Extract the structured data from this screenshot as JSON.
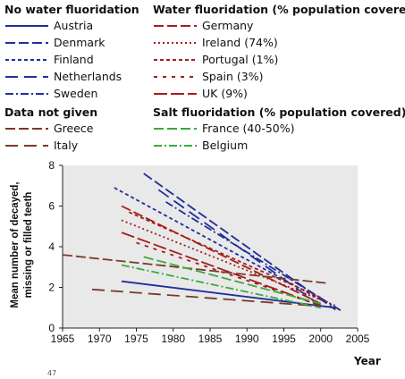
{
  "legend": {
    "no_water_header": "No water fluoridation",
    "water_header": "Water fluoridation (% population covered)",
    "data_not_given_header": "Data not given",
    "salt_header": "Salt fluoridation (% population covered)"
  },
  "chart_data": {
    "type": "line",
    "xlabel": "Year",
    "ylabel_line1": "Mean number of decayed,",
    "ylabel_line2": "missing or filled teeth",
    "xlim": [
      1965,
      2005
    ],
    "ylim": [
      0,
      8
    ],
    "x_ticks": [
      1965,
      1970,
      1975,
      1980,
      1985,
      1990,
      1995,
      2000,
      2005
    ],
    "x_tick_labels": [
      "1965",
      "1970",
      "1975",
      "1980",
      "1985",
      "1990",
      "1995",
      "2000",
      "2005"
    ],
    "y_ticks": [
      0,
      2,
      4,
      6,
      8
    ],
    "y_tick_labels": [
      "0",
      "2",
      "4",
      "6",
      "8"
    ],
    "grid": false,
    "footnote": "47",
    "series": [
      {
        "name": "Austria",
        "group": "no_water",
        "color": "#1f2f9c",
        "dash": "solid",
        "x": [
          1973,
          2002
        ],
        "y": [
          2.3,
          1.0
        ]
      },
      {
        "name": "Denmark",
        "group": "no_water",
        "color": "#1f2f9c",
        "dash": "long",
        "x": [
          1976,
          2002
        ],
        "y": [
          7.6,
          0.9
        ]
      },
      {
        "name": "Finland",
        "group": "no_water",
        "color": "#1f2f9c",
        "dash": "short",
        "x": [
          1972,
          2001
        ],
        "y": [
          6.9,
          1.2
        ]
      },
      {
        "name": "Netherlands",
        "group": "no_water",
        "color": "#1f2f9c",
        "dash": "longgap",
        "x": [
          1978,
          2000
        ],
        "y": [
          6.8,
          1.1
        ]
      },
      {
        "name": "Sweden",
        "group": "no_water",
        "color": "#1f2f9c",
        "dash": "dashdot",
        "x": [
          1979,
          2003
        ],
        "y": [
          6.2,
          0.8
        ]
      },
      {
        "name": "Germany",
        "group": "water",
        "color": "#a51d1d",
        "dash": "long",
        "x": [
          1973,
          2000
        ],
        "y": [
          6.0,
          1.2
        ]
      },
      {
        "name": "Ireland (74%)",
        "group": "water",
        "color": "#a51d1d",
        "dash": "dot",
        "x": [
          1973,
          2002
        ],
        "y": [
          5.3,
          1.1
        ]
      },
      {
        "name": "Portugal (1%)",
        "group": "water",
        "color": "#a51d1d",
        "dash": "short",
        "x": [
          1974,
          2000
        ],
        "y": [
          5.7,
          1.5
        ]
      },
      {
        "name": "Spain (3%)",
        "group": "water",
        "color": "#a51d1d",
        "dash": "shortgap",
        "x": [
          1975,
          2000
        ],
        "y": [
          4.2,
          1.1
        ]
      },
      {
        "name": "UK (9%)",
        "group": "water",
        "color": "#a51d1d",
        "dash": "longdash",
        "x": [
          1973,
          2000
        ],
        "y": [
          4.7,
          1.1
        ]
      },
      {
        "name": "Greece",
        "group": "not_given",
        "color": "#7a3a2a",
        "dash": "long",
        "x": [
          1965,
          2001
        ],
        "y": [
          3.6,
          2.2
        ]
      },
      {
        "name": "Italy",
        "group": "not_given",
        "color": "#7a3a2a",
        "dash": "longgap",
        "x": [
          1969,
          1999
        ],
        "y": [
          1.9,
          1.1
        ]
      },
      {
        "name": "France (40-50%)",
        "group": "salt",
        "color": "#3aaa3a",
        "dash": "long",
        "x": [
          1976,
          2000
        ],
        "y": [
          3.5,
          1.2
        ]
      },
      {
        "name": "Belgium",
        "group": "salt",
        "color": "#3aaa3a",
        "dash": "dashdot",
        "x": [
          1973,
          2000
        ],
        "y": [
          3.1,
          1.0
        ]
      }
    ]
  }
}
